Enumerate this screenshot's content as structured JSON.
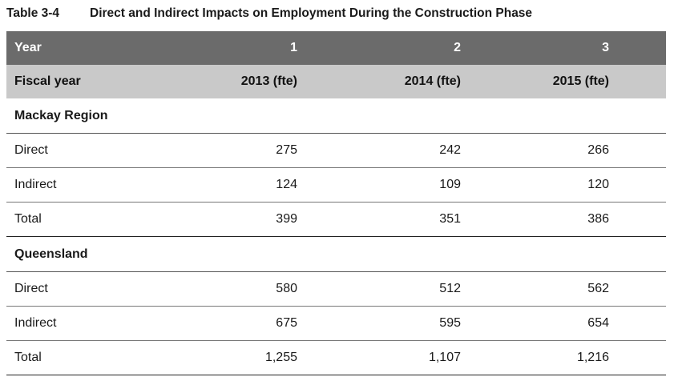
{
  "caption": {
    "number": "Table 3-4",
    "title": "Direct and Indirect Impacts on Employment During the Construction Phase"
  },
  "header": {
    "year_label": "Year",
    "years": [
      "1",
      "2",
      "3"
    ],
    "fiscal_label": "Fiscal year",
    "fiscal_years": [
      "2013 (fte)",
      "2014 (fte)",
      "2015 (fte)"
    ]
  },
  "sections": [
    {
      "title": "Mackay Region",
      "rows": [
        {
          "label": "Direct",
          "values": [
            "275",
            "242",
            "266"
          ]
        },
        {
          "label": "Indirect",
          "values": [
            "124",
            "109",
            "120"
          ]
        },
        {
          "label": "Total",
          "values": [
            "399",
            "351",
            "386"
          ]
        }
      ]
    },
    {
      "title": "Queensland",
      "rows": [
        {
          "label": "Direct",
          "values": [
            "580",
            "512",
            "562"
          ]
        },
        {
          "label": "Indirect",
          "values": [
            "675",
            "595",
            "654"
          ]
        },
        {
          "label": "Total",
          "values": [
            "1,255",
            "1,107",
            "1,216"
          ]
        }
      ]
    }
  ]
}
